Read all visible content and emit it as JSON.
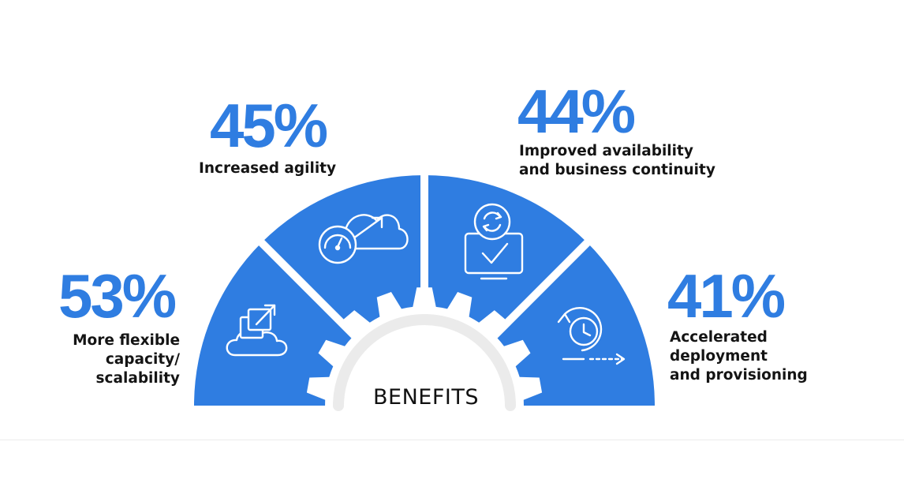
{
  "center_label": "BENEFITS",
  "benefits": [
    {
      "percent": "53%",
      "label_lines": [
        "More flexible",
        "capacity/",
        "scalability"
      ],
      "icon": "cloud-scale-icon"
    },
    {
      "percent": "45%",
      "label_lines": [
        "Increased agility"
      ],
      "icon": "cloud-speedometer-icon"
    },
    {
      "percent": "44%",
      "label_lines": [
        "Improved availability",
        "and business continuity"
      ],
      "icon": "monitor-sync-check-icon"
    },
    {
      "percent": "41%",
      "label_lines": [
        "Accelerated",
        "deployment",
        "and provisioning"
      ],
      "icon": "clock-arrow-icon"
    }
  ],
  "colors": {
    "accent": "#2f7de1",
    "text": "#141414",
    "gauge_track": "#ebebeb"
  }
}
